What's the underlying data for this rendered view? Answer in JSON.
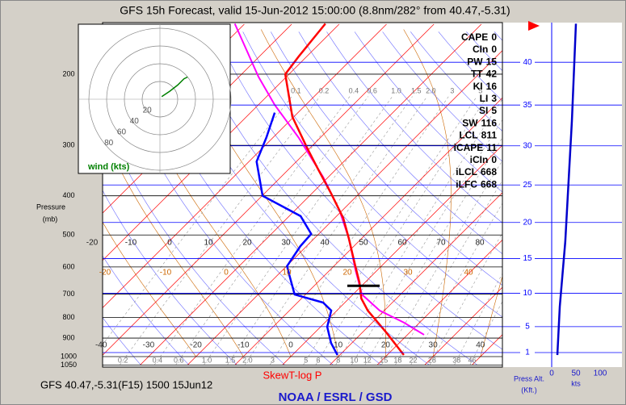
{
  "title": "GFS 15h Forecast, valid 15-Jun-2012 15:00:00 (8.8nm/282° from 40.47,-5.31)",
  "footer_left": "GFS 40.47,-5.31(F15) 1500 15Jun12",
  "footer_center": "NOAA / ESRL / GSD",
  "chart_data": {
    "type": "skewt",
    "title": "SkewT-log P",
    "y_label": "Pressure",
    "y_unit": "(mb)",
    "log_y": true,
    "ylim": [
      1050,
      150
    ],
    "yticks": [
      200,
      300,
      400,
      500,
      600,
      700,
      800,
      900,
      1000,
      1050
    ],
    "xticks": [
      -40,
      -30,
      -20,
      -10,
      0,
      10,
      20,
      30,
      40
    ],
    "isotherm_color": "#ff0000",
    "theta_labels": [
      -20,
      -10,
      0,
      10,
      20,
      30,
      40,
      50,
      60,
      70,
      80
    ],
    "moist_labels": [
      -20,
      -10,
      0,
      10,
      20,
      30,
      40
    ],
    "moist_color": "#cc6600",
    "mixing_ratios": [
      0.1,
      0.2,
      0.4,
      0.6,
      {
        "value": 1,
        "label": "1.0"
      },
      1.5,
      {
        "value": 2,
        "label": "2.0"
      },
      3,
      5,
      6,
      8,
      10,
      12,
      15,
      18,
      22,
      28,
      38,
      46
    ],
    "temperature": {
      "color": "#ff0000",
      "pressure": [
        991,
        871,
        769,
        718,
        655,
        597,
        509,
        454,
        395,
        345,
        304,
        255,
        200,
        181,
        150
      ],
      "values": [
        23.5,
        15.0,
        6.5,
        2.6,
        -1.2,
        -5.5,
        -12.8,
        -18.2,
        -25.9,
        -33.6,
        -40.7,
        -50.3,
        -60.8,
        -61.7,
        -63.0
      ]
    },
    "dewpoint": {
      "color": "#0000ff",
      "pressure": [
        991,
        925,
        844,
        769,
        735,
        702,
        626,
        597,
        533,
        497,
        449,
        400,
        329,
        287,
        249
      ],
      "values": [
        9.5,
        5.6,
        1.4,
        -1.2,
        -4.6,
        -12.3,
        -17.7,
        -19.9,
        -21.3,
        -21.6,
        -27.6,
        -39.9,
        -48.4,
        -51.4,
        -54.9
      ]
    },
    "parcel": {
      "color": "#ff00ff",
      "pressure": [
        883,
        824,
        769,
        702,
        611,
        509,
        433,
        360,
        287,
        238,
        203,
        150
      ],
      "values": [
        23.5,
        16.7,
        9.0,
        1.9,
        -4.6,
        -12.8,
        -20.8,
        -31.0,
        -44.6,
        -56.6,
        -65.9,
        -82.1
      ]
    },
    "altitude": {
      "label": "Press Alt.",
      "unit": "(Kft.)",
      "color": "#0000ff",
      "ticks": [
        1,
        5,
        10,
        15,
        20,
        25,
        30,
        35,
        40
      ]
    },
    "wind": {
      "label": "kts",
      "color": "#0000cc",
      "xticks": [
        0,
        50,
        100
      ],
      "pressure": [
        991,
        752,
        520,
        261,
        150
      ],
      "values": [
        11.7,
        16.7,
        28,
        41.7,
        50
      ]
    },
    "hodograph": {
      "label": "wind (kts)",
      "color": "#008000",
      "rings": [
        20,
        40,
        60,
        80
      ],
      "u": [
        2,
        11,
        20,
        27,
        31
      ],
      "v": [
        3,
        9,
        16,
        23,
        25
      ]
    },
    "indices": [
      {
        "name": "CAPE",
        "value": 0
      },
      {
        "name": "CIn",
        "value": 0
      },
      {
        "name": "PW",
        "value": 15
      },
      {
        "name": "TT",
        "value": 42
      },
      {
        "name": "KI",
        "value": 16
      },
      {
        "name": "LI",
        "value": 3
      },
      {
        "name": "SI",
        "value": 5
      },
      {
        "name": "SW",
        "value": 116
      },
      {
        "name": "LCL",
        "value": 811
      },
      {
        "name": "iCAPE",
        "value": 11
      },
      {
        "name": "iCIn",
        "value": 0
      },
      {
        "name": "iLCL",
        "value": 668
      },
      {
        "name": "iLFC",
        "value": 668
      }
    ],
    "lcl_index": 11
  }
}
